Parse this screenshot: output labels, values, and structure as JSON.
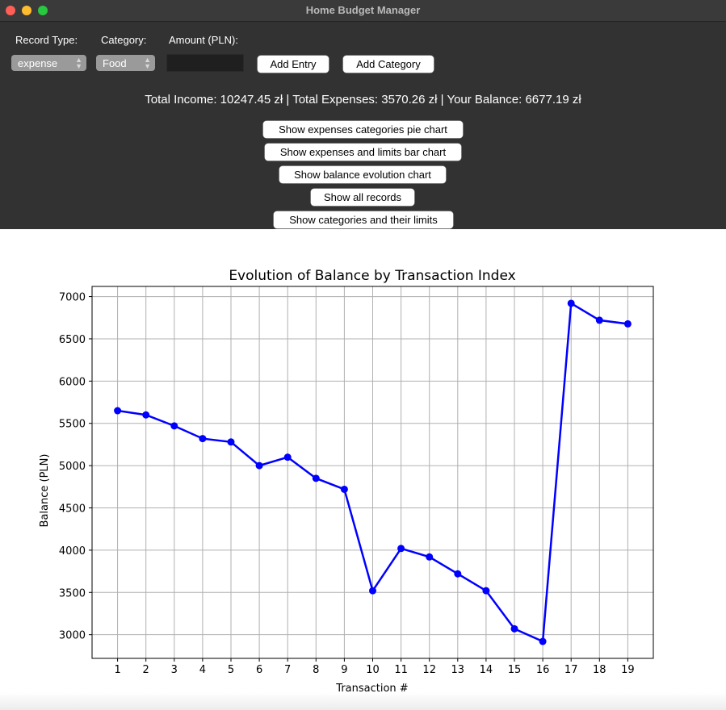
{
  "window": {
    "title": "Home Budget Manager"
  },
  "form": {
    "record_type_label": "Record Type:",
    "category_label": "Category:",
    "amount_label": "Amount (PLN):",
    "record_type_value": "expense",
    "category_value": "Food",
    "amount_value": "",
    "add_entry_label": "Add Entry",
    "add_category_label": "Add Category"
  },
  "summary": "Total Income: 10247.45 zł | Total Expenses: 3570.26 zł | Your Balance: 6677.19 zł",
  "actions": [
    "Show expenses categories pie chart",
    "Show expenses and limits bar chart",
    "Show balance evolution chart",
    "Show all records",
    "Show categories and their limits"
  ],
  "chart_data": {
    "type": "line",
    "title": "Evolution of Balance by Transaction Index",
    "xlabel": "Transaction #",
    "ylabel": "Balance (PLN)",
    "x": [
      1,
      2,
      3,
      4,
      5,
      6,
      7,
      8,
      9,
      10,
      11,
      12,
      13,
      14,
      15,
      16,
      17,
      18,
      19
    ],
    "y": [
      5650,
      5600,
      5470,
      5320,
      5280,
      5000,
      5100,
      4850,
      4720,
      3520,
      4020,
      3920,
      3720,
      3520,
      3070,
      2920,
      6920,
      6720,
      6677
    ],
    "xlim": [
      0.1,
      19.9
    ],
    "ylim": [
      2720,
      7120
    ],
    "yticks": [
      3000,
      3500,
      4000,
      4500,
      5000,
      5500,
      6000,
      6500,
      7000
    ],
    "grid": true,
    "color": "#0000ff"
  }
}
